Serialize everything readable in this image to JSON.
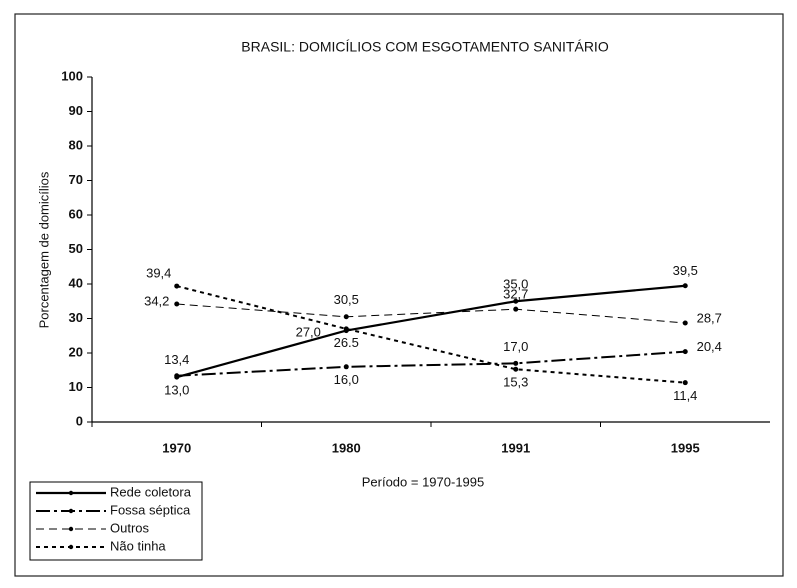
{
  "chart_data": {
    "type": "line",
    "title": "BRASIL: DOMICÍLIOS COM ESGOTAMENTO SANITÁRIO",
    "xlabel": "Período = 1970-1995",
    "ylabel": "Porcentagem de domicílios",
    "categories": [
      "1970",
      "1980",
      "1991",
      "1995"
    ],
    "series": [
      {
        "name": "Rede coletora",
        "color": "#000000",
        "dash": "solid",
        "values": [
          13.0,
          26.5,
          35.0,
          39.5
        ],
        "value_labels": [
          "13,0",
          "26.5",
          "35,0",
          "39,5"
        ]
      },
      {
        "name": "Fossa séptica",
        "color": "#000000",
        "dash": "dashdot",
        "values": [
          13.4,
          16.0,
          17.0,
          20.4
        ],
        "value_labels": [
          "13,4",
          "16,0",
          "17,0",
          "20,4"
        ]
      },
      {
        "name": "Outros",
        "color": "#000000",
        "dash": "dashed",
        "values": [
          34.2,
          30.5,
          32.7,
          28.7
        ],
        "value_labels": [
          "34,2",
          "30,5",
          "32,7",
          "28,7"
        ]
      },
      {
        "name": "Não tinha",
        "color": "#000000",
        "dash": "dotted",
        "values": [
          39.4,
          27.0,
          15.3,
          11.4
        ],
        "value_labels": [
          "39,4",
          "27,0",
          "15,3",
          "11,4"
        ]
      }
    ],
    "ylim": [
      0,
      100
    ],
    "yticks": [
      0,
      10,
      20,
      30,
      40,
      50,
      60,
      70,
      80,
      90,
      100
    ],
    "legend": "bottom-left"
  }
}
